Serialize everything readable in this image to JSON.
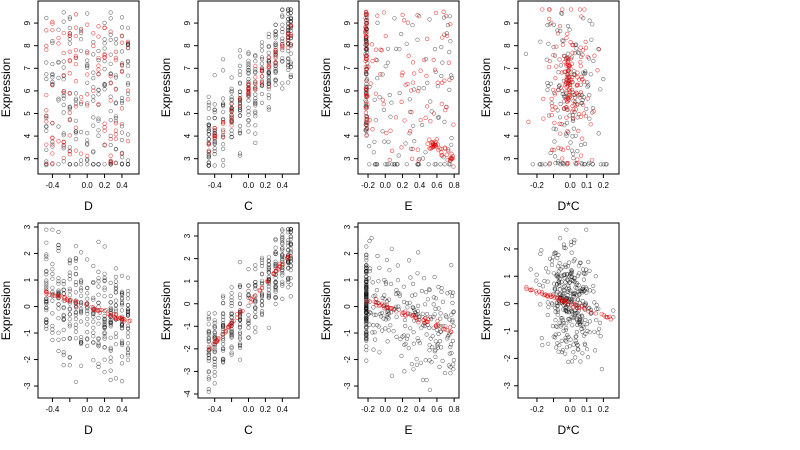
{
  "chart_data": [
    {
      "type": "scatter",
      "xlabel": "D",
      "ylabel": "Expression",
      "xlim": [
        -0.52,
        0.55
      ],
      "ylim": [
        2.5,
        9.8
      ],
      "xticks": [
        -0.4,
        -0.2,
        0.0,
        0.2,
        0.4
      ],
      "xtick_labels": [
        "-0.4",
        "0.0",
        "0.2",
        "0.4"
      ],
      "xtick_label_at": [
        -0.4,
        0.0,
        0.2,
        0.4
      ],
      "yticks": [
        3,
        4,
        5,
        6,
        7,
        8,
        9
      ],
      "ytick_labels": [
        "3",
        "4",
        "5",
        "6",
        "7",
        "8",
        "9"
      ],
      "pattern": "d_raw"
    },
    {
      "type": "scatter",
      "xlabel": "C",
      "ylabel": "Expression",
      "xlim": [
        -0.55,
        0.55
      ],
      "ylim": [
        2.5,
        9.8
      ],
      "xticks": [
        -0.4,
        -0.2,
        0.0,
        0.2,
        0.4
      ],
      "xtick_labels": [
        "-0.4",
        "0.0",
        "0.2",
        "0.4"
      ],
      "xtick_label_at": [
        -0.4,
        0.0,
        0.2,
        0.4
      ],
      "yticks": [
        3,
        4,
        5,
        6,
        7,
        8,
        9
      ],
      "ytick_labels": [
        "3",
        "4",
        "5",
        "6",
        "7",
        "8",
        "9"
      ],
      "pattern": "c_raw"
    },
    {
      "type": "scatter",
      "xlabel": "E",
      "ylabel": "Expression",
      "xlim": [
        -0.27,
        0.81
      ],
      "ylim": [
        2.5,
        9.8
      ],
      "xticks": [
        -0.2,
        0.0,
        0.2,
        0.4,
        0.6,
        0.8
      ],
      "xtick_labels": [
        "-0.2",
        "0.0",
        "0.2",
        "0.4",
        "0.6",
        "0.8"
      ],
      "xtick_label_at": [
        -0.2,
        0.0,
        0.2,
        0.4,
        0.6,
        0.8
      ],
      "yticks": [
        3,
        4,
        5,
        6,
        7,
        8,
        9
      ],
      "ytick_labels": [
        "3",
        "4",
        "5",
        "6",
        "7",
        "8",
        "9"
      ],
      "pattern": "e_raw"
    },
    {
      "type": "scatter",
      "xlabel": "D*C",
      "ylabel": "Expression",
      "xlim": [
        -0.29,
        0.27
      ],
      "ylim": [
        2.5,
        9.8
      ],
      "xticks": [
        -0.2,
        -0.1,
        0.0,
        0.1,
        0.2
      ],
      "xtick_labels": [
        "-0.2",
        "0.0",
        "0.1",
        "0.2"
      ],
      "xtick_label_at": [
        -0.2,
        0.0,
        0.1,
        0.2
      ],
      "yticks": [
        3,
        4,
        5,
        6,
        7,
        8,
        9
      ],
      "ytick_labels": [
        "3",
        "4",
        "5",
        "6",
        "7",
        "8",
        "9"
      ],
      "pattern": "dc_raw"
    },
    {
      "type": "scatter",
      "xlabel": "D",
      "ylabel": "Expression",
      "xlim": [
        -0.52,
        0.55
      ],
      "ylim": [
        -3.3,
        3.0
      ],
      "xticks": [
        -0.4,
        -0.2,
        0.0,
        0.2,
        0.4
      ],
      "xtick_labels": [
        "-0.4",
        "0.0",
        "0.2",
        "0.4"
      ],
      "xtick_label_at": [
        -0.4,
        0.0,
        0.2,
        0.4
      ],
      "yticks": [
        -3,
        -2,
        -1,
        0,
        1,
        2,
        3
      ],
      "ytick_labels": [
        "-3",
        "-2",
        "-1",
        "0",
        "1",
        "2",
        "3"
      ],
      "fit": {
        "slope": -1.1,
        "intercept": 0.0
      },
      "pattern": "resid_linear"
    },
    {
      "type": "scatter",
      "xlabel": "C",
      "ylabel": "Expression",
      "xlim": [
        -0.55,
        0.55
      ],
      "ylim": [
        -4.0,
        3.4
      ],
      "xticks": [
        -0.4,
        -0.2,
        0.0,
        0.2,
        0.4
      ],
      "xtick_labels": [
        "-0.4",
        "0.0",
        "0.2",
        "0.4"
      ],
      "xtick_label_at": [
        -0.4,
        0.0,
        0.2,
        0.4
      ],
      "yticks": [
        -4,
        -3,
        -2,
        -1,
        0,
        1,
        2,
        3
      ],
      "ytick_labels": [
        "-4",
        "-3",
        "-2",
        "-1",
        "0",
        "1",
        "2",
        "3"
      ],
      "fit": {
        "slope": 4.4,
        "intercept": 0.0
      },
      "pattern": "resid_c"
    },
    {
      "type": "scatter",
      "xlabel": "E",
      "ylabel": "Expression",
      "xlim": [
        -0.27,
        0.81
      ],
      "ylim": [
        -3.3,
        3.0
      ],
      "xticks": [
        -0.2,
        0.0,
        0.2,
        0.4,
        0.6,
        0.8
      ],
      "xtick_labels": [
        "-0.2",
        "0.0",
        "0.2",
        "0.4",
        "0.6",
        "0.8"
      ],
      "xtick_label_at": [
        -0.2,
        0.0,
        0.2,
        0.4,
        0.6,
        0.8
      ],
      "yticks": [
        -3,
        -2,
        -1,
        0,
        1,
        2,
        3
      ],
      "ytick_labels": [
        "-3",
        "-2",
        "-1",
        "0",
        "1",
        "2",
        "3"
      ],
      "fit": {
        "slope": -1.2,
        "intercept": 0.0
      },
      "pattern": "resid_e"
    },
    {
      "type": "scatter",
      "xlabel": "D*C",
      "ylabel": "Expression",
      "xlim": [
        -0.29,
        0.27
      ],
      "ylim": [
        -3.3,
        2.8
      ],
      "xticks": [
        -0.2,
        -0.1,
        0.0,
        0.1,
        0.2
      ],
      "xtick_labels": [
        "-0.2",
        "0.0",
        "0.1",
        "0.2"
      ],
      "xtick_label_at": [
        -0.2,
        0.0,
        0.1,
        0.2
      ],
      "yticks": [
        -3,
        -2,
        -1,
        0,
        1,
        2
      ],
      "ytick_labels": [
        "-3",
        "-2",
        "-1",
        "0",
        "1",
        "2"
      ],
      "fit": {
        "slope": -2.2,
        "intercept": 0.0
      },
      "pattern": "resid_dc"
    }
  ]
}
